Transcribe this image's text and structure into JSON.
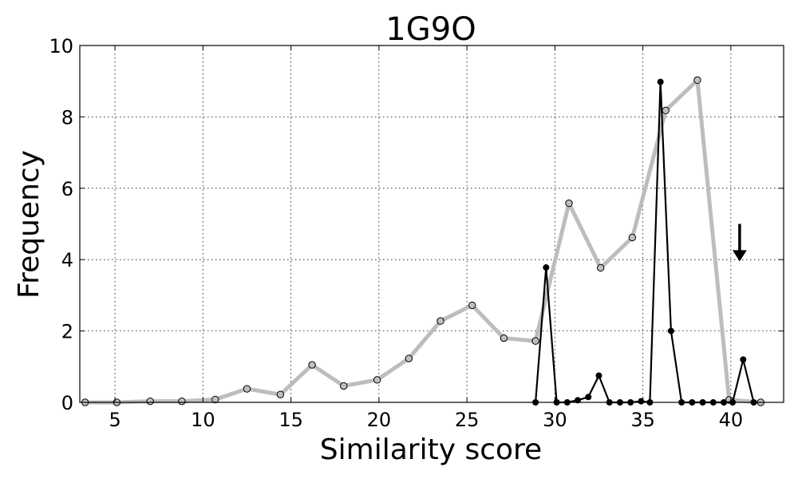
{
  "chart_data": {
    "type": "line",
    "title": "1G9O",
    "xlabel": "Similarity score",
    "ylabel": "Frequency",
    "xlim": [
      3,
      43
    ],
    "ylim": [
      0,
      10
    ],
    "xticks": [
      5,
      10,
      15,
      20,
      25,
      30,
      35,
      40
    ],
    "yticks": [
      0,
      2,
      4,
      6,
      8,
      10
    ],
    "grid": true,
    "colors": {
      "series_gray": "#bdbdbd",
      "series_black": "#000000",
      "marker_gray_fill": "#bfbfbf"
    },
    "series": [
      {
        "style": "thick-gray-line-open-markers",
        "x": [
          3.3,
          5.1,
          7.0,
          8.8,
          10.7,
          12.5,
          14.4,
          16.2,
          18.0,
          19.9,
          21.7,
          23.5,
          25.3,
          27.1,
          28.9,
          30.8,
          32.6,
          34.4,
          36.3,
          38.1,
          39.9,
          41.7
        ],
        "values": [
          0.0,
          0.0,
          0.03,
          0.03,
          0.08,
          0.38,
          0.22,
          1.05,
          0.46,
          0.63,
          1.23,
          2.28,
          2.72,
          1.8,
          1.72,
          5.58,
          3.77,
          4.62,
          8.18,
          9.03,
          0.07,
          0.0
        ]
      },
      {
        "style": "thin-black-line-filled-markers",
        "x": [
          28.9,
          29.5,
          30.1,
          30.7,
          31.3,
          31.9,
          32.5,
          33.1,
          33.7,
          34.3,
          34.9,
          35.4,
          36.0,
          36.6,
          37.2,
          37.8,
          38.4,
          39.0,
          39.6,
          40.1,
          40.7,
          41.3
        ],
        "values": [
          0.0,
          3.78,
          0.0,
          0.0,
          0.06,
          0.15,
          0.75,
          0.0,
          0.0,
          0.0,
          0.03,
          0.0,
          8.98,
          2.0,
          0.0,
          0.0,
          0.0,
          0.0,
          0.0,
          0.0,
          1.2,
          0.0
        ]
      }
    ],
    "annotations": [
      {
        "type": "arrow-down",
        "x": 40.5,
        "y_start": 5.0,
        "y_end": 3.95
      }
    ]
  }
}
